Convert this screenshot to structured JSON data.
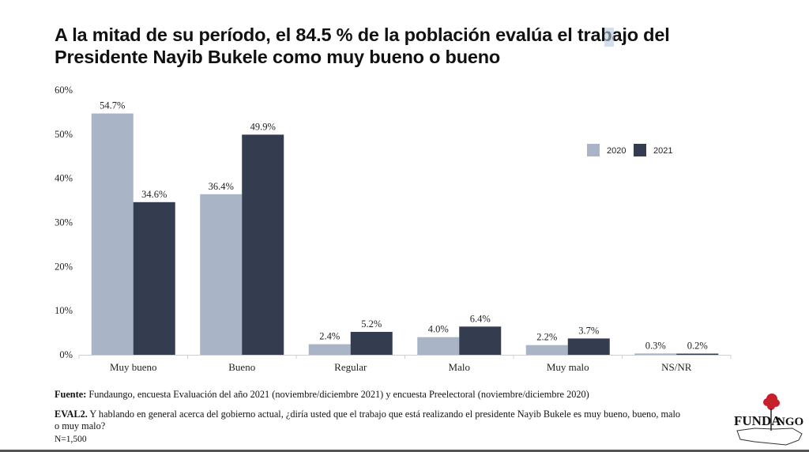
{
  "chart_data": {
    "type": "bar",
    "title": "A la mitad de su período, el 84.5 % de la población evalúa el trabajo del Presidente Nayib Bukele como muy bueno o bueno",
    "categories": [
      "Muy bueno",
      "Bueno",
      "Regular",
      "Malo",
      "Muy malo",
      "NS/NR"
    ],
    "series": [
      {
        "name": "2020",
        "color": "#a9b4c6",
        "values": [
          54.7,
          36.4,
          2.4,
          4.0,
          2.2,
          0.3
        ],
        "labels": [
          "54.7%",
          "36.4%",
          "2.4%",
          "4.0%",
          "2.2%",
          "0.3%"
        ]
      },
      {
        "name": "2021",
        "color": "#333d4f",
        "values": [
          34.6,
          49.9,
          5.2,
          6.4,
          3.7,
          0.2
        ],
        "labels": [
          "34.6%",
          "49.9%",
          "5.2%",
          "6.4%",
          "3.7%",
          "0.2%"
        ]
      }
    ],
    "xlabel": "",
    "ylabel": "",
    "ylim": [
      0,
      60
    ],
    "yticks": [
      0,
      10,
      20,
      30,
      40,
      50,
      60
    ],
    "ytick_labels": [
      "0%",
      "10%",
      "20%",
      "30%",
      "40%",
      "50%",
      "60%"
    ],
    "grid": false,
    "legend_position": "top-right"
  },
  "title": {
    "line1": "A la mitad de su período, el 84.5 % de la población evalúa el trabajo del",
    "line2": "Presidente Nayib Bukele como muy bueno o bueno"
  },
  "footer": {
    "source_label": "Fuente:",
    "source_text": " Fundaungo, encuesta Evaluación del año 2021 (noviembre/diciembre 2021)  y encuesta Preelectoral (noviembre/diciembre 2020)",
    "question_label": "EVAL2.",
    "question_text": " Y hablando en general acerca del gobierno actual, ¿diría usted que el trabajo que está realizando el presidente Nayib Bukele es muy bueno, bueno, malo o muy malo?",
    "sample": "N=1,500"
  },
  "logo": {
    "text_left": "FUNDA",
    "text_right": "NGO",
    "rose_color": "#c8202a"
  }
}
